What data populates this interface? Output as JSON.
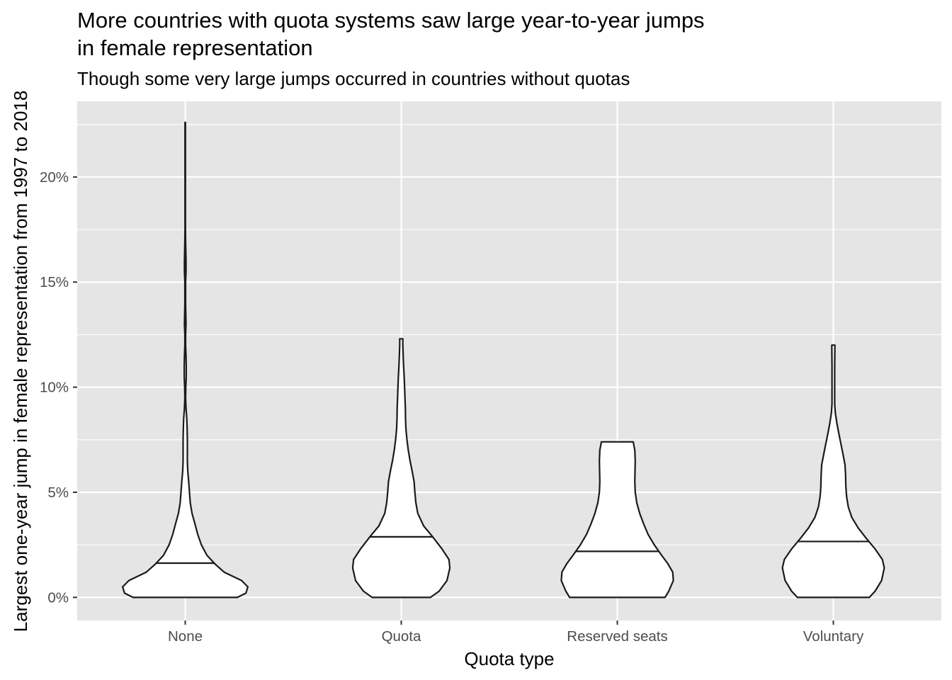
{
  "chart_data": {
    "type": "violin",
    "title_lines": [
      "More countries with quota systems saw large year-to-year jumps",
      "in female  representation"
    ],
    "subtitle": "Though some very large jumps occurred in countries without quotas",
    "xlabel": "Quota type",
    "ylabel": "Largest one-year jump in female representation from 1997 to 2018",
    "ylim": [
      -0.011,
      0.236
    ],
    "y_ticks": [
      {
        "value": 0.0,
        "label": "0%"
      },
      {
        "value": 0.05,
        "label": "5%"
      },
      {
        "value": 0.1,
        "label": "10%"
      },
      {
        "value": 0.15,
        "label": "15%"
      },
      {
        "value": 0.2,
        "label": "20%"
      }
    ],
    "y_minor_ticks": [
      0.025,
      0.075,
      0.125,
      0.175,
      0.225
    ],
    "grid": true,
    "categories": [
      "None",
      "Quota",
      "Reserved seats",
      "Voluntary"
    ],
    "series": [
      {
        "category": "None",
        "median": 0.0163,
        "min": 0.0,
        "max": 0.226,
        "density_profile": [
          [
            0.0,
            0.268
          ],
          [
            0.002,
            0.312
          ],
          [
            0.005,
            0.322
          ],
          [
            0.008,
            0.29
          ],
          [
            0.012,
            0.2
          ],
          [
            0.016,
            0.152
          ],
          [
            0.02,
            0.112
          ],
          [
            0.025,
            0.083
          ],
          [
            0.03,
            0.064
          ],
          [
            0.035,
            0.05
          ],
          [
            0.04,
            0.035
          ],
          [
            0.045,
            0.026
          ],
          [
            0.05,
            0.022
          ],
          [
            0.055,
            0.018
          ],
          [
            0.06,
            0.013
          ],
          [
            0.065,
            0.011
          ],
          [
            0.07,
            0.011
          ],
          [
            0.075,
            0.011
          ],
          [
            0.08,
            0.01
          ],
          [
            0.085,
            0.008
          ],
          [
            0.09,
            0.004
          ],
          [
            0.095,
            0.002
          ],
          [
            0.1,
            0.003
          ],
          [
            0.105,
            0.005
          ],
          [
            0.11,
            0.005
          ],
          [
            0.115,
            0.004
          ],
          [
            0.12,
            0.002
          ],
          [
            0.125,
            0.002
          ],
          [
            0.13,
            0.004
          ],
          [
            0.135,
            0.003
          ],
          [
            0.14,
            0.002
          ],
          [
            0.145,
            0.002
          ],
          [
            0.15,
            0.002
          ],
          [
            0.155,
            0.004
          ],
          [
            0.16,
            0.004
          ],
          [
            0.165,
            0.003
          ],
          [
            0.17,
            0.002
          ],
          [
            0.175,
            0.001
          ],
          [
            0.185,
            0.001
          ],
          [
            0.2,
            0.001
          ],
          [
            0.215,
            0.001
          ],
          [
            0.226,
            0.001
          ]
        ]
      },
      {
        "category": "Quota",
        "median": 0.0288,
        "min": 0.0,
        "max": 0.123,
        "density_profile": [
          [
            0.0,
            0.15
          ],
          [
            0.003,
            0.195
          ],
          [
            0.008,
            0.235
          ],
          [
            0.014,
            0.25
          ],
          [
            0.018,
            0.245
          ],
          [
            0.023,
            0.21
          ],
          [
            0.029,
            0.16
          ],
          [
            0.034,
            0.115
          ],
          [
            0.04,
            0.085
          ],
          [
            0.045,
            0.075
          ],
          [
            0.05,
            0.07
          ],
          [
            0.055,
            0.066
          ],
          [
            0.06,
            0.056
          ],
          [
            0.065,
            0.045
          ],
          [
            0.07,
            0.036
          ],
          [
            0.075,
            0.029
          ],
          [
            0.08,
            0.024
          ],
          [
            0.085,
            0.022
          ],
          [
            0.09,
            0.021
          ],
          [
            0.095,
            0.019
          ],
          [
            0.1,
            0.017
          ],
          [
            0.105,
            0.015
          ],
          [
            0.11,
            0.012
          ],
          [
            0.115,
            0.01
          ],
          [
            0.12,
            0.008
          ],
          [
            0.123,
            0.008
          ]
        ]
      },
      {
        "category": "Reserved seats",
        "median": 0.0219,
        "min": 0.0,
        "max": 0.0742,
        "density_profile": [
          [
            0.0,
            0.245
          ],
          [
            0.003,
            0.265
          ],
          [
            0.008,
            0.288
          ],
          [
            0.012,
            0.285
          ],
          [
            0.016,
            0.26
          ],
          [
            0.02,
            0.228
          ],
          [
            0.025,
            0.19
          ],
          [
            0.03,
            0.158
          ],
          [
            0.035,
            0.135
          ],
          [
            0.04,
            0.115
          ],
          [
            0.045,
            0.1
          ],
          [
            0.05,
            0.092
          ],
          [
            0.055,
            0.09
          ],
          [
            0.06,
            0.091
          ],
          [
            0.065,
            0.092
          ],
          [
            0.07,
            0.09
          ],
          [
            0.074,
            0.082
          ]
        ]
      },
      {
        "category": "Voluntary",
        "median": 0.0266,
        "min": 0.0,
        "max": 0.12,
        "density_profile": [
          [
            0.0,
            0.185
          ],
          [
            0.003,
            0.215
          ],
          [
            0.008,
            0.248
          ],
          [
            0.014,
            0.262
          ],
          [
            0.018,
            0.252
          ],
          [
            0.023,
            0.215
          ],
          [
            0.028,
            0.17
          ],
          [
            0.033,
            0.128
          ],
          [
            0.038,
            0.095
          ],
          [
            0.043,
            0.077
          ],
          [
            0.048,
            0.068
          ],
          [
            0.053,
            0.064
          ],
          [
            0.058,
            0.063
          ],
          [
            0.063,
            0.06
          ],
          [
            0.068,
            0.05
          ],
          [
            0.073,
            0.039
          ],
          [
            0.078,
            0.028
          ],
          [
            0.083,
            0.018
          ],
          [
            0.088,
            0.01
          ],
          [
            0.092,
            0.007
          ],
          [
            0.1,
            0.007
          ],
          [
            0.11,
            0.007
          ],
          [
            0.12,
            0.008
          ]
        ]
      }
    ],
    "colors": {
      "panel_background": "#e5e5e5",
      "grid": "#ffffff",
      "violin_fill": "#ffffff",
      "violin_stroke": "#1a1a1a",
      "tick_label": "#4d4d4d",
      "tick_mark": "#333333"
    }
  }
}
